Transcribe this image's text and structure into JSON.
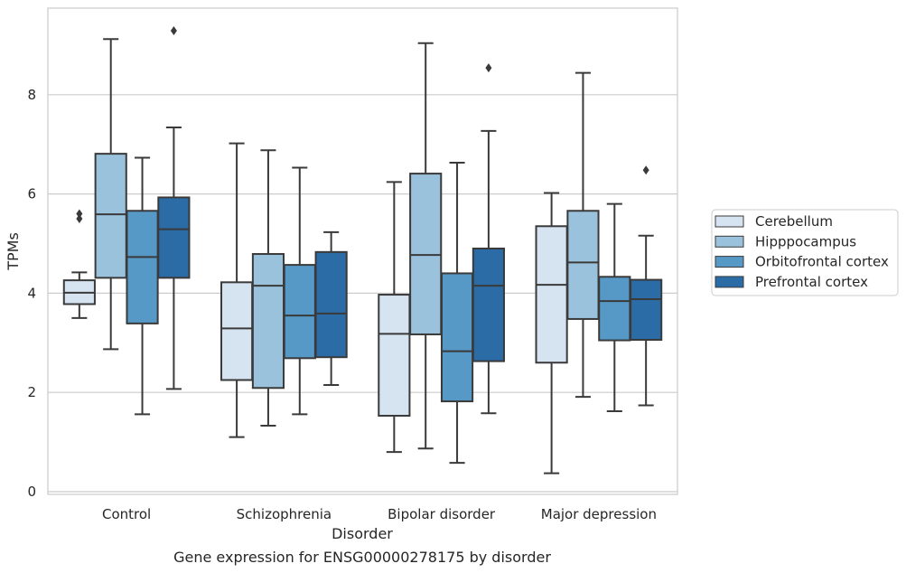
{
  "chart_data": {
    "type": "boxplot",
    "title": "",
    "caption": "Gene expression for ENSG00000278175 by disorder",
    "xlabel": "Disorder",
    "ylabel": "TPMs",
    "ylim": [
      -0.1,
      9.7
    ],
    "yticks": [
      0,
      2,
      4,
      6,
      8
    ],
    "grid": "horizontal",
    "legend_position": "right",
    "categories": [
      "Control",
      "Schizophrenia",
      "Bipolar disorder",
      "Major depression"
    ],
    "series": [
      {
        "name": "Cerebellum",
        "color": "#d6e4f2",
        "boxes": [
          {
            "whisker_low": 3.5,
            "q1": 3.78,
            "median": 4.01,
            "q3": 4.26,
            "whisker_high": 4.42,
            "outliers": [
              5.5,
              5.6
            ]
          },
          {
            "whisker_low": 1.1,
            "q1": 2.25,
            "median": 3.29,
            "q3": 4.22,
            "whisker_high": 7.02,
            "outliers": []
          },
          {
            "whisker_low": 0.8,
            "q1": 1.53,
            "median": 3.18,
            "q3": 3.97,
            "whisker_high": 6.24,
            "outliers": []
          },
          {
            "whisker_low": 0.37,
            "q1": 2.6,
            "median": 4.17,
            "q3": 5.35,
            "whisker_high": 6.02,
            "outliers": []
          }
        ]
      },
      {
        "name": "Hipppocampus",
        "color": "#9ac2dc",
        "boxes": [
          {
            "whisker_low": 2.87,
            "q1": 4.31,
            "median": 5.59,
            "q3": 6.81,
            "whisker_high": 9.12,
            "outliers": []
          },
          {
            "whisker_low": 1.33,
            "q1": 2.09,
            "median": 4.15,
            "q3": 4.79,
            "whisker_high": 6.88,
            "outliers": []
          },
          {
            "whisker_low": 0.87,
            "q1": 3.17,
            "median": 4.77,
            "q3": 6.41,
            "whisker_high": 9.04,
            "outliers": []
          },
          {
            "whisker_low": 1.91,
            "q1": 3.48,
            "median": 4.62,
            "q3": 5.66,
            "whisker_high": 8.44,
            "outliers": []
          }
        ]
      },
      {
        "name": "Orbitofrontal cortex",
        "color": "#5698c6",
        "boxes": [
          {
            "whisker_low": 1.56,
            "q1": 3.39,
            "median": 4.73,
            "q3": 5.66,
            "whisker_high": 6.73,
            "outliers": []
          },
          {
            "whisker_low": 1.56,
            "q1": 2.69,
            "median": 3.55,
            "q3": 4.57,
            "whisker_high": 6.53,
            "outliers": []
          },
          {
            "whisker_low": 0.58,
            "q1": 1.82,
            "median": 2.83,
            "q3": 4.4,
            "whisker_high": 6.63,
            "outliers": []
          },
          {
            "whisker_low": 1.62,
            "q1": 3.05,
            "median": 3.84,
            "q3": 4.33,
            "whisker_high": 5.8,
            "outliers": []
          }
        ]
      },
      {
        "name": "Prefrontal cortex",
        "color": "#2b6ca6",
        "boxes": [
          {
            "whisker_low": 2.07,
            "q1": 4.31,
            "median": 5.29,
            "q3": 5.93,
            "whisker_high": 7.34,
            "outliers": [
              9.29
            ]
          },
          {
            "whisker_low": 2.15,
            "q1": 2.71,
            "median": 3.59,
            "q3": 4.83,
            "whisker_high": 5.23,
            "outliers": []
          },
          {
            "whisker_low": 1.58,
            "q1": 2.63,
            "median": 4.15,
            "q3": 4.9,
            "whisker_high": 7.27,
            "outliers": [
              8.54
            ]
          },
          {
            "whisker_low": 1.74,
            "q1": 3.06,
            "median": 3.88,
            "q3": 4.27,
            "whisker_high": 5.16,
            "outliers": [
              6.48
            ]
          }
        ]
      }
    ]
  }
}
